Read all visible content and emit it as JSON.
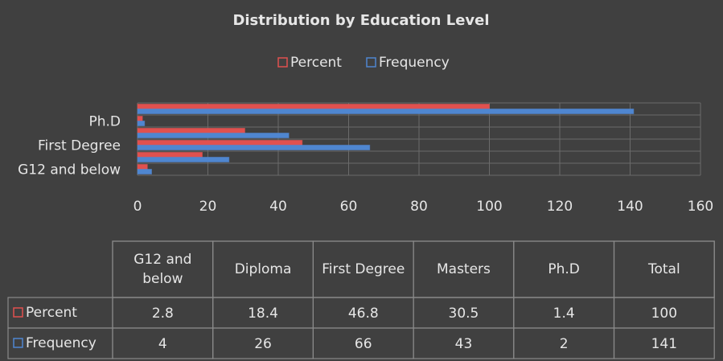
{
  "chart_data": {
    "type": "barh",
    "title": "Distribution by Education Level",
    "categories": [
      "G12 and below",
      "Diploma",
      "First Degree",
      "Masters",
      "Ph.D",
      "Total"
    ],
    "series": [
      {
        "name": "Percent",
        "color": "#e0514f",
        "values": [
          2.8,
          18.4,
          46.8,
          30.5,
          1.4,
          100
        ]
      },
      {
        "name": "Frequency",
        "color": "#4f86d0",
        "values": [
          4,
          26,
          66,
          43,
          2,
          141
        ]
      }
    ],
    "xlim": [
      0,
      160
    ],
    "xticks": [
      0,
      20,
      40,
      60,
      80,
      100,
      120,
      140,
      160
    ],
    "grid": true,
    "legend": "top"
  }
}
